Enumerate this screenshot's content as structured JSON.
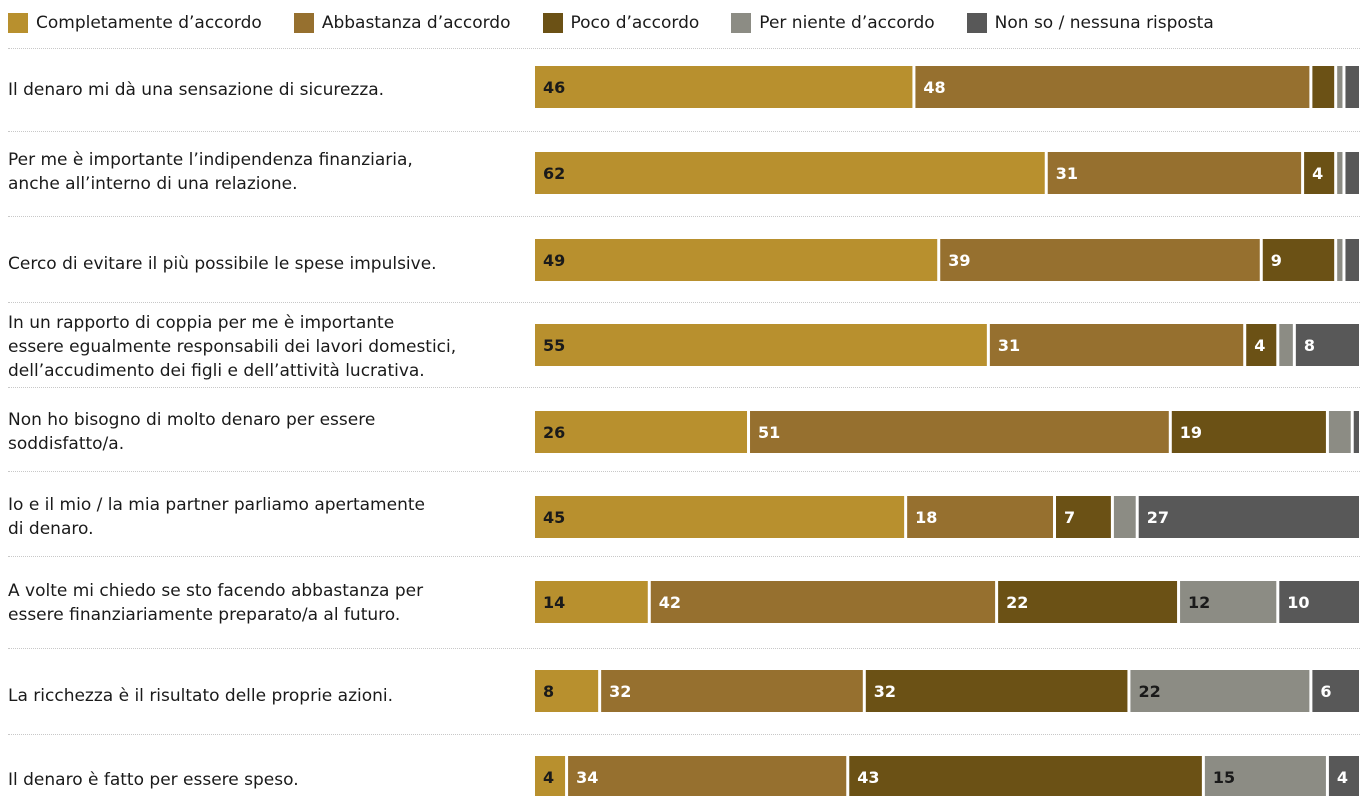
{
  "chart_data": {
    "type": "bar",
    "orientation": "horizontal",
    "stacked": true,
    "legend_position": "top",
    "series": [
      {
        "name": "Completamente d’accordo",
        "color": "#b8902e",
        "label_color": "#1a1a1a",
        "values": [
          46,
          62,
          49,
          55,
          26,
          45,
          14,
          8,
          4
        ]
      },
      {
        "name": "Abbastanza d’accordo",
        "color": "#96702f",
        "label_color": "#ffffff",
        "values": [
          48,
          31,
          39,
          31,
          51,
          18,
          42,
          32,
          34
        ]
      },
      {
        "name": "Poco d’accordo",
        "color": "#6b5115",
        "label_color": "#ffffff",
        "values": [
          3,
          4,
          9,
          4,
          19,
          7,
          22,
          32,
          43
        ]
      },
      {
        "name": "Per niente d’accordo",
        "color": "#8c8c84",
        "label_color": "#1a1a1a",
        "values": [
          1,
          1,
          1,
          2,
          3,
          3,
          12,
          22,
          15
        ]
      },
      {
        "name": "Non so / nessuna risposta",
        "color": "#585858",
        "label_color": "#ffffff",
        "values": [
          2,
          2,
          2,
          8,
          1,
          27,
          10,
          6,
          4
        ]
      }
    ],
    "categories": [
      "Il denaro mi dà una sensazione di sicurezza.",
      "Per me è importante l’indipendenza finanziaria,\nanche all’interno di una relazione.",
      "Cerco di evitare il più possibile le spese impulsive.",
      "In un rapporto di coppia per me è importante\nessere egualmente responsabili dei lavori domestici,\ndell’accudimento dei figli e dell’attività lucrativa.",
      "Non ho bisogno di molto denaro per essere\nsoddisfatto/a.",
      "Io e il mio / la mia partner parliamo apertamente\ndi denaro.",
      "A volte mi chiedo se sto facendo abbastanza per\nessere finanziariamente preparato/a al futuro.",
      "La ricchezza è il risultato delle proprie azioni.",
      "Il denaro è fatto per essere speso."
    ],
    "data_labels": [
      [
        "46",
        "48",
        "",
        "",
        ""
      ],
      [
        "62",
        "31",
        "4",
        "",
        ""
      ],
      [
        "49",
        "39",
        "9",
        "",
        ""
      ],
      [
        "55",
        "31",
        "4",
        "",
        "8"
      ],
      [
        "26",
        "51",
        "19",
        "",
        ""
      ],
      [
        "45",
        "18",
        "7",
        "",
        "27"
      ],
      [
        "14",
        "42",
        "22",
        "12",
        "10"
      ],
      [
        "8",
        "32",
        "32",
        "22",
        "6"
      ],
      [
        "4",
        "34",
        "43",
        "15",
        "4"
      ]
    ]
  }
}
